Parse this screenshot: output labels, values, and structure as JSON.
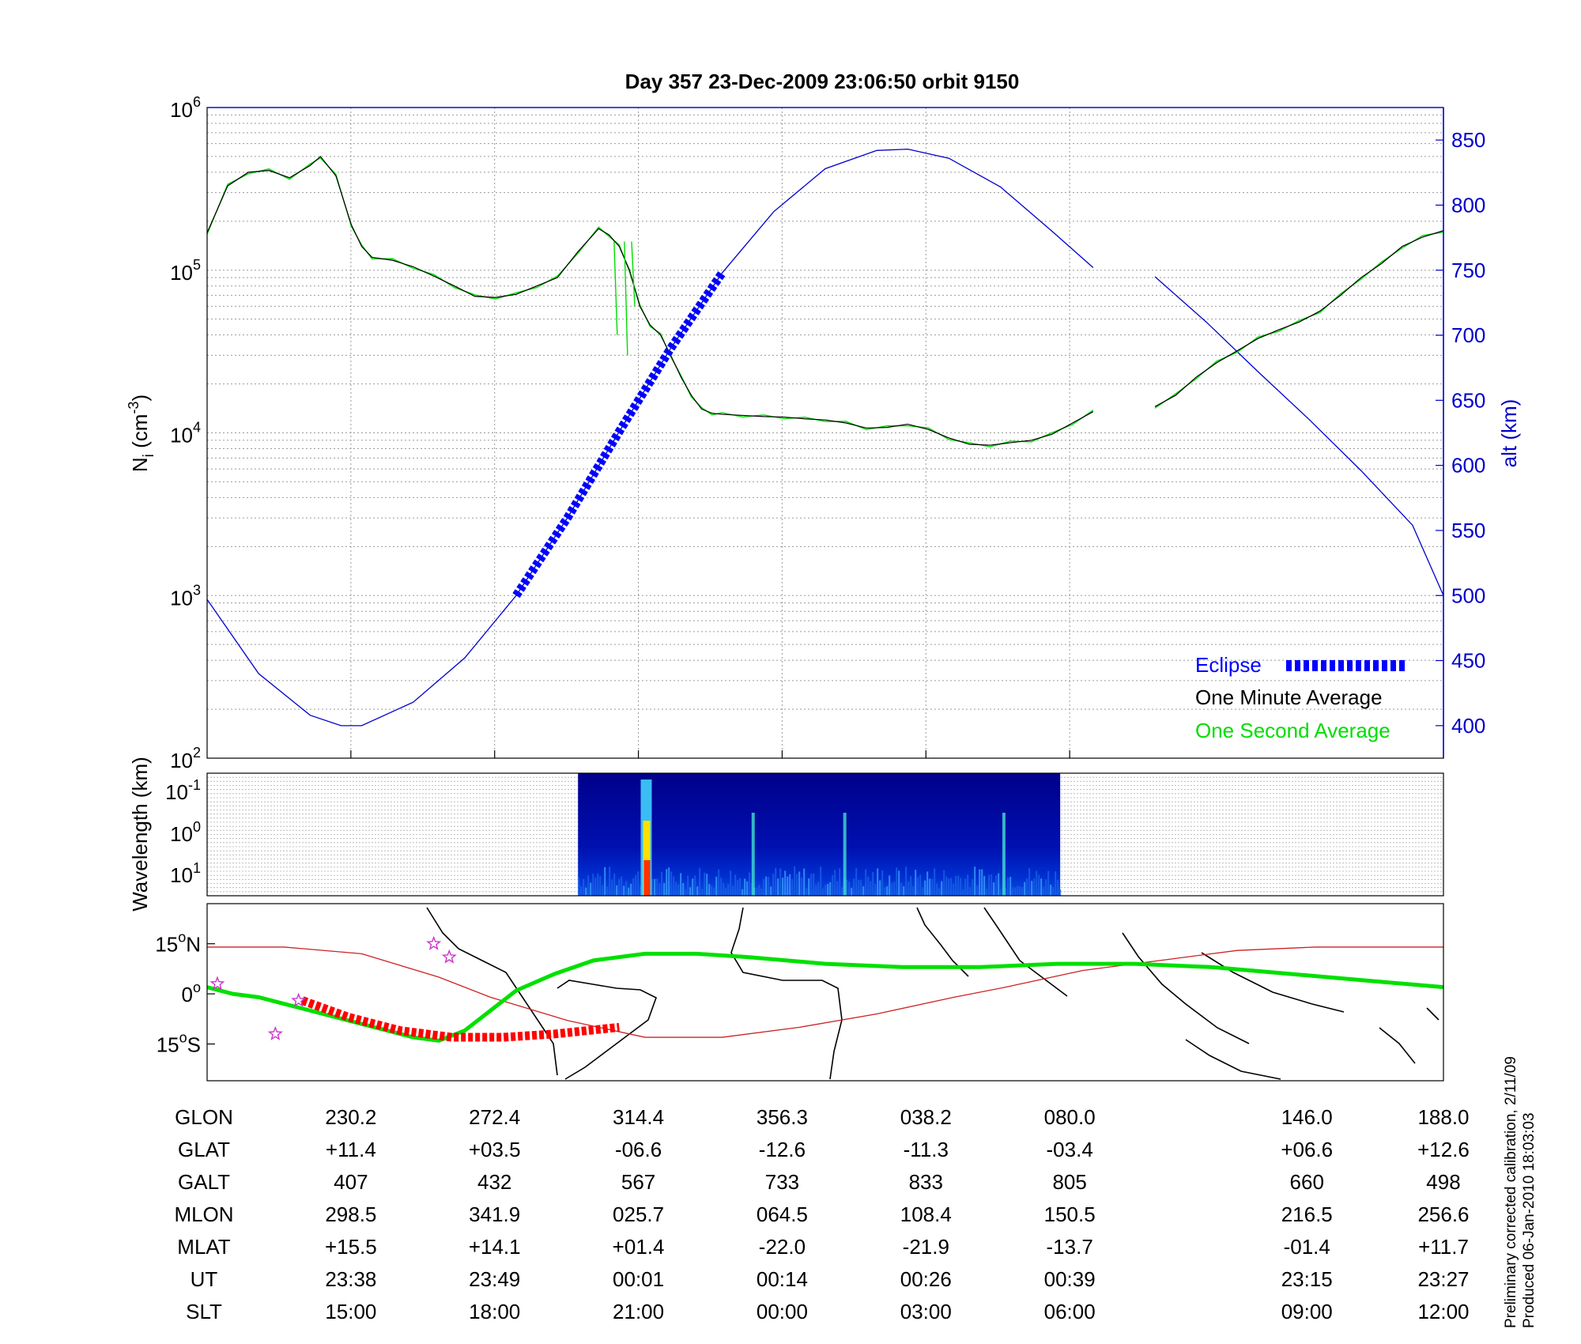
{
  "title": "Day 357  23-Dec-2009 23:06:50   orbit 9150",
  "footnote": {
    "line1": "Preliminary corrected calibration, 2/11/09",
    "line2": "Produced 06-Jan-2010 18:03:03"
  },
  "colors": {
    "axis": "#000000",
    "grid": "#9a9a9a",
    "altitude": "#0000cc",
    "one_minute": "#000000",
    "one_second": "#00dd00",
    "eclipse": "#0000ff",
    "ground_track": "#00e000",
    "eclipse_track": "#ff0000",
    "magnetic_equator": "#cc2222",
    "star": "#cc33cc",
    "coast": "#000000"
  },
  "chart_data": [
    {
      "type": "line",
      "panel": "ion-density",
      "ylabel": "N",
      "ylabel_sub": "i",
      "ylabel_unit": " (cm",
      "ylabel_exp": "-3",
      "ylabel_close": ")",
      "yscale": "log",
      "ylim": [
        100,
        1000000
      ],
      "yticks": [
        {
          "mantissa": "10",
          "exp": "2",
          "value": 100
        },
        {
          "mantissa": "10",
          "exp": "3",
          "value": 1000
        },
        {
          "mantissa": "10",
          "exp": "4",
          "value": 10000
        },
        {
          "mantissa": "10",
          "exp": "5",
          "value": 100000
        },
        {
          "mantissa": "10",
          "exp": "6",
          "value": 1000000
        }
      ],
      "y2label": "alt (km)",
      "y2lim": [
        375,
        875
      ],
      "y2ticks": [
        "400",
        "450",
        "500",
        "550",
        "600",
        "650",
        "700",
        "750",
        "800",
        "850"
      ],
      "xlim": [
        0,
        8.6
      ],
      "xticks": [
        1,
        2,
        3,
        4,
        5,
        6,
        8,
        8.6
      ],
      "grid": true,
      "legend_position": "bottom-right",
      "legend": {
        "eclipse": "Eclipse",
        "one_minute": "One Minute Average",
        "one_second": "One Second Average"
      },
      "density_segments": [
        [
          [
            0.0,
            170000
          ],
          [
            0.2,
            330000
          ],
          [
            0.4,
            400000
          ],
          [
            0.6,
            410000
          ],
          [
            0.8,
            370000
          ],
          [
            1.0,
            440000
          ],
          [
            1.1,
            500000
          ],
          [
            1.25,
            380000
          ],
          [
            1.4,
            190000
          ],
          [
            1.5,
            140000
          ],
          [
            1.6,
            120000
          ],
          [
            1.8,
            115000
          ],
          [
            2.0,
            105000
          ],
          [
            2.2,
            92000
          ],
          [
            2.4,
            80000
          ],
          [
            2.6,
            69000
          ],
          [
            2.8,
            68000
          ],
          [
            3.0,
            71000
          ],
          [
            3.2,
            80000
          ],
          [
            3.4,
            90000
          ],
          [
            3.6,
            130000
          ],
          [
            3.8,
            180000
          ],
          [
            3.9,
            165000
          ],
          [
            4.0,
            140000
          ],
          [
            4.1,
            100000
          ],
          [
            4.2,
            60000
          ],
          [
            4.3,
            46000
          ],
          [
            4.4,
            40000
          ],
          [
            4.5,
            30000
          ],
          [
            4.6,
            22000
          ],
          [
            4.7,
            17000
          ],
          [
            4.8,
            14000
          ],
          [
            4.9,
            13200
          ],
          [
            5.0,
            13000
          ],
          [
            5.2,
            12800
          ],
          [
            5.4,
            12600
          ],
          [
            5.6,
            12500
          ],
          [
            5.8,
            12200
          ],
          [
            6.0,
            12000
          ],
          [
            6.2,
            11500
          ],
          [
            6.4,
            10700
          ],
          [
            6.6,
            10800
          ],
          [
            6.8,
            11300
          ],
          [
            7.0,
            10500
          ],
          [
            7.2,
            9300
          ],
          [
            7.4,
            8500
          ],
          [
            7.6,
            8400
          ],
          [
            7.8,
            8700
          ],
          [
            8.0,
            9000
          ],
          [
            8.2,
            9800
          ],
          [
            8.4,
            11500
          ],
          [
            8.6,
            13500
          ]
        ],
        [
          [
            9.2,
            14500
          ],
          [
            9.4,
            17000
          ],
          [
            9.6,
            22000
          ],
          [
            9.8,
            27000
          ],
          [
            10.0,
            32000
          ],
          [
            10.2,
            38000
          ],
          [
            10.4,
            43000
          ],
          [
            10.6,
            48000
          ],
          [
            10.8,
            56000
          ],
          [
            11.0,
            70000
          ],
          [
            11.2,
            90000
          ],
          [
            11.4,
            110000
          ],
          [
            11.6,
            140000
          ],
          [
            11.8,
            160000
          ],
          [
            12.0,
            175000
          ]
        ]
      ],
      "altitude_segments": [
        [
          [
            0.0,
            497
          ],
          [
            0.5,
            440
          ],
          [
            1.0,
            408
          ],
          [
            1.3,
            400
          ],
          [
            1.5,
            400
          ],
          [
            2.0,
            418
          ],
          [
            2.5,
            452
          ],
          [
            3.0,
            500
          ],
          [
            3.5,
            560
          ],
          [
            4.0,
            626
          ],
          [
            4.5,
            690
          ],
          [
            5.0,
            748
          ],
          [
            5.5,
            795
          ],
          [
            6.0,
            828
          ],
          [
            6.5,
            842
          ],
          [
            6.8,
            843
          ],
          [
            7.2,
            836
          ],
          [
            7.7,
            814
          ],
          [
            8.2,
            780
          ],
          [
            8.6,
            752
          ]
        ],
        [
          [
            9.2,
            745
          ],
          [
            9.7,
            710
          ],
          [
            10.2,
            672
          ],
          [
            10.7,
            635
          ],
          [
            11.2,
            596
          ],
          [
            11.7,
            554
          ],
          [
            12.0,
            500
          ]
        ]
      ],
      "eclipse_range": [
        2.6,
        5.2
      ],
      "spikes": [
        [
          3.95,
          40000
        ],
        [
          4.05,
          30000
        ],
        [
          4.12,
          60000
        ]
      ],
      "x_fine_max": 12.0
    },
    {
      "type": "heatmap",
      "panel": "wavelength-spectrogram",
      "ylabel": "Wavelength (km)",
      "yticks": [
        {
          "mantissa": "10",
          "exp": "-1"
        },
        {
          "mantissa": "10",
          "exp": "0"
        },
        {
          "mantissa": "10",
          "exp": "1"
        }
      ],
      "data_range_fraction": [
        0.3,
        0.69
      ]
    },
    {
      "type": "line",
      "panel": "map",
      "yticks": [
        {
          "label": "15",
          "suffix": "N",
          "value": 15
        },
        {
          "label": "0",
          "suffix": "",
          "value": 0
        },
        {
          "label": "15",
          "suffix": "S",
          "value": -15
        }
      ],
      "ylim": [
        -26,
        27
      ],
      "ground_track": [
        [
          0.0,
          2
        ],
        [
          0.1,
          0
        ],
        [
          0.2,
          -1
        ],
        [
          0.3,
          -3
        ],
        [
          0.4,
          -5
        ],
        [
          0.5,
          -7
        ],
        [
          0.6,
          -9
        ],
        [
          0.7,
          -11
        ],
        [
          0.8,
          -13
        ],
        [
          0.9,
          -14
        ],
        [
          1.0,
          -11
        ],
        [
          1.1,
          -5
        ],
        [
          1.2,
          1
        ],
        [
          1.35,
          6
        ],
        [
          1.5,
          10
        ],
        [
          1.7,
          12
        ],
        [
          1.9,
          12
        ],
        [
          2.1,
          11
        ],
        [
          2.4,
          9
        ],
        [
          2.7,
          8
        ],
        [
          3.0,
          8
        ],
        [
          3.3,
          9
        ],
        [
          3.6,
          9
        ],
        [
          3.9,
          8
        ],
        [
          4.2,
          6
        ],
        [
          4.5,
          4
        ],
        [
          4.8,
          2
        ]
      ],
      "magnetic_equator": [
        [
          0.0,
          14
        ],
        [
          0.3,
          14
        ],
        [
          0.6,
          12
        ],
        [
          0.9,
          5
        ],
        [
          1.1,
          -1
        ],
        [
          1.4,
          -8
        ],
        [
          1.7,
          -13
        ],
        [
          2.0,
          -13
        ],
        [
          2.3,
          -10
        ],
        [
          2.6,
          -6
        ],
        [
          2.9,
          -1
        ],
        [
          3.1,
          2
        ],
        [
          3.4,
          7
        ],
        [
          3.7,
          10
        ],
        [
          4.0,
          13
        ],
        [
          4.3,
          14
        ],
        [
          4.8,
          14
        ]
      ],
      "eclipse_track": [
        [
          0.37,
          -2
        ],
        [
          0.55,
          -7
        ],
        [
          0.75,
          -11
        ],
        [
          0.95,
          -13
        ],
        [
          1.15,
          -13
        ],
        [
          1.35,
          -12
        ],
        [
          1.6,
          -10
        ]
      ],
      "stars": [
        [
          0.04,
          3
        ],
        [
          0.265,
          -12
        ],
        [
          0.355,
          -2
        ],
        [
          0.88,
          15
        ],
        [
          0.94,
          11
        ]
      ]
    }
  ],
  "table": {
    "row_labels": [
      "GLON",
      "GLAT",
      "GALT",
      "MLON",
      "MLAT",
      "UT",
      "SLT"
    ],
    "columns": [
      [
        "230.2",
        "+11.4",
        "407",
        "298.5",
        "+15.5",
        "23:38",
        "15:00"
      ],
      [
        "272.4",
        "+03.5",
        "432",
        "341.9",
        "+14.1",
        "23:49",
        "18:00"
      ],
      [
        "314.4",
        "-06.6",
        "567",
        "025.7",
        "+01.4",
        "00:01",
        "21:00"
      ],
      [
        "356.3",
        "-12.6",
        "733",
        "064.5",
        "-22.0",
        "00:14",
        "00:00"
      ],
      [
        "038.2",
        "-11.3",
        "833",
        "108.4",
        "-21.9",
        "00:26",
        "03:00"
      ],
      [
        "080.0",
        "-03.4",
        "805",
        "150.5",
        "-13.7",
        "00:39",
        "06:00"
      ],
      [
        "146.0",
        "+06.6",
        "660",
        "216.5",
        "-01.4",
        "23:15",
        "09:00"
      ],
      [
        "188.0",
        "+12.6",
        "498",
        "256.6",
        "+11.7",
        "23:27",
        "12:00"
      ]
    ]
  }
}
